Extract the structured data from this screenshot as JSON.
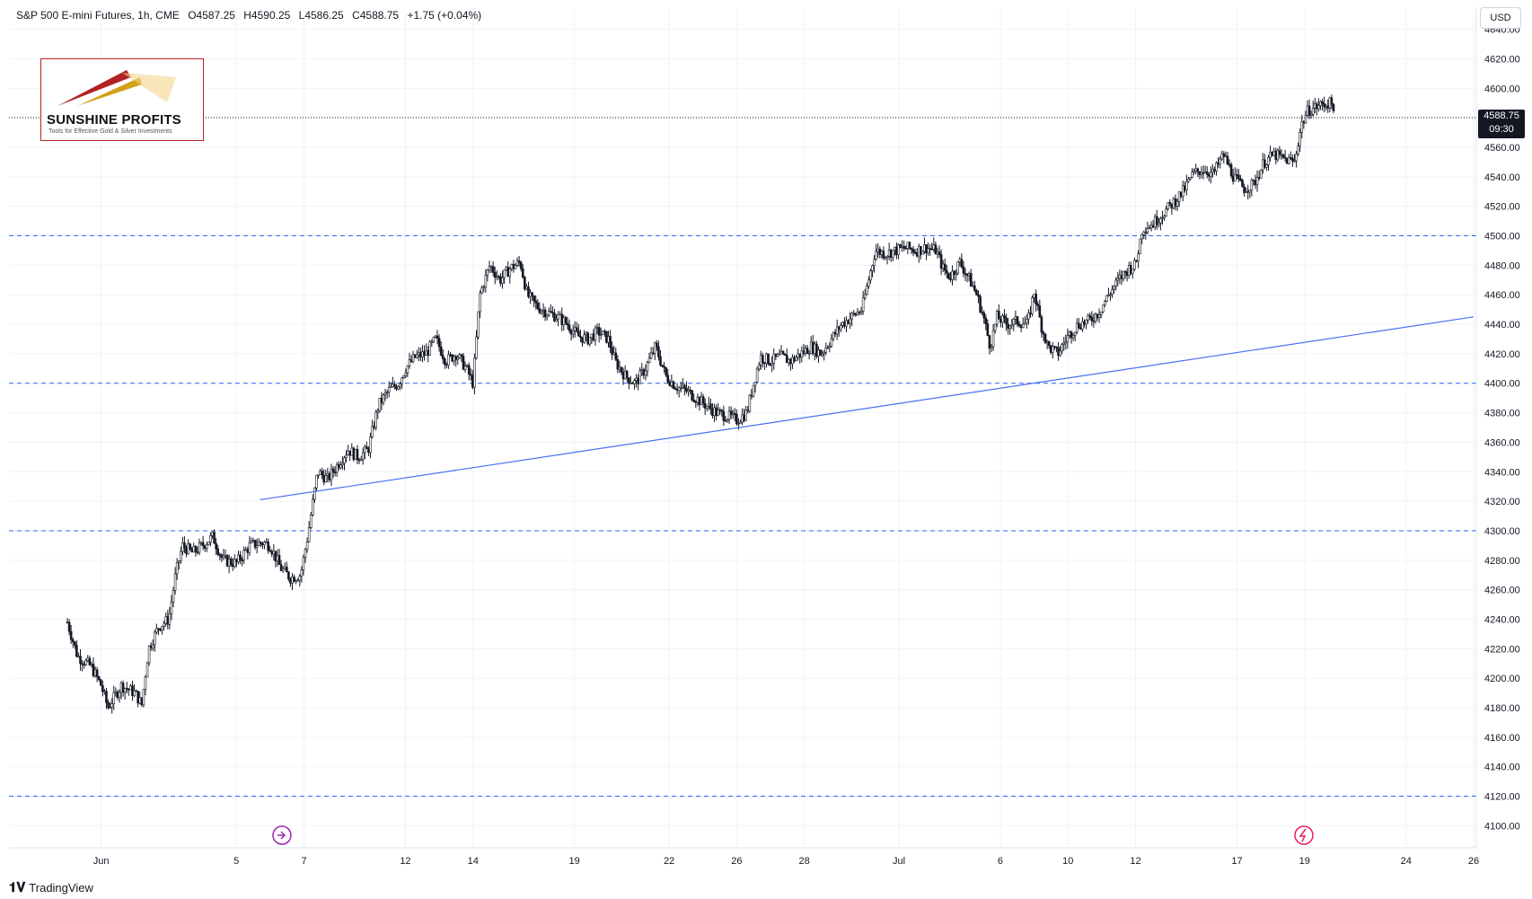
{
  "header": {
    "symbol": "S&P 500 E-mini Futures, 1h, CME",
    "open": "O4587.25",
    "high": "H4590.25",
    "low": "L4586.25",
    "close": "C4588.75",
    "change": "+1.75 (+0.04%)"
  },
  "logo": {
    "name": "SUNSHINE PROFITS",
    "tagline": "Tools for Effective Gold & Silver Investments"
  },
  "currency": "USD",
  "last_price": {
    "value": "4588.75",
    "countdown": "09:30"
  },
  "footer": {
    "brand": "TradingView"
  },
  "colors": {
    "candle": "#131722",
    "level_line": "#2962ff",
    "trend_line": "#4a6ff0",
    "grid": "#f0f3fa"
  },
  "chart_data": {
    "type": "candlestick",
    "title": "S&P 500 E-mini Futures, 1h, CME",
    "ylim": [
      4085,
      4655
    ],
    "y_ticks": [
      4100,
      4120,
      4140,
      4160,
      4180,
      4200,
      4220,
      4240,
      4260,
      4280,
      4300,
      4320,
      4340,
      4360,
      4380,
      4400,
      4420,
      4440,
      4460,
      4480,
      4500,
      4520,
      4540,
      4560,
      4580,
      4600,
      4620,
      4640
    ],
    "x_tick_labels": [
      {
        "label": "Jun",
        "day": 1.0
      },
      {
        "label": "5",
        "day": 5
      },
      {
        "label": "7",
        "day": 7
      },
      {
        "label": "12",
        "day": 10
      },
      {
        "label": "14",
        "day": 12
      },
      {
        "label": "19",
        "day": 15
      },
      {
        "label": "22",
        "day": 17.8
      },
      {
        "label": "26",
        "day": 19.8
      },
      {
        "label": "28",
        "day": 21.8
      },
      {
        "label": "Jul",
        "day": 24.6
      },
      {
        "label": "6",
        "day": 27.6
      },
      {
        "label": "10",
        "day": 29.6
      },
      {
        "label": "12",
        "day": 31.6
      },
      {
        "label": "17",
        "day": 34.6
      },
      {
        "label": "19",
        "day": 36.6
      },
      {
        "label": "24",
        "day": 39.6
      },
      {
        "label": "26",
        "day": 41.6
      }
    ],
    "x_range": [
      0,
      41.6
    ],
    "horizontal_levels": [
      4120,
      4300,
      4400,
      4500
    ],
    "trendline": {
      "start": {
        "day": 5.7,
        "price": 4321
      },
      "end": {
        "day": 41.6,
        "price": 4445
      }
    },
    "price_path": [
      {
        "day": 0.0,
        "price": 4238
      },
      {
        "day": 0.3,
        "price": 4215
      },
      {
        "day": 0.7,
        "price": 4208
      },
      {
        "day": 1.0,
        "price": 4195
      },
      {
        "day": 1.2,
        "price": 4180
      },
      {
        "day": 1.6,
        "price": 4195
      },
      {
        "day": 2.0,
        "price": 4190
      },
      {
        "day": 2.2,
        "price": 4182
      },
      {
        "day": 2.4,
        "price": 4220
      },
      {
        "day": 2.7,
        "price": 4235
      },
      {
        "day": 3.0,
        "price": 4240
      },
      {
        "day": 3.2,
        "price": 4270
      },
      {
        "day": 3.4,
        "price": 4290
      },
      {
        "day": 3.7,
        "price": 4285
      },
      {
        "day": 4.0,
        "price": 4290
      },
      {
        "day": 4.3,
        "price": 4296
      },
      {
        "day": 4.6,
        "price": 4280
      },
      {
        "day": 5.0,
        "price": 4278
      },
      {
        "day": 5.4,
        "price": 4290
      },
      {
        "day": 5.8,
        "price": 4292
      },
      {
        "day": 6.0,
        "price": 4290
      },
      {
        "day": 6.3,
        "price": 4275
      },
      {
        "day": 6.6,
        "price": 4268
      },
      {
        "day": 6.9,
        "price": 4270
      },
      {
        "day": 7.1,
        "price": 4295
      },
      {
        "day": 7.4,
        "price": 4340
      },
      {
        "day": 7.7,
        "price": 4335
      },
      {
        "day": 8.0,
        "price": 4345
      },
      {
        "day": 8.3,
        "price": 4355
      },
      {
        "day": 8.6,
        "price": 4350
      },
      {
        "day": 8.9,
        "price": 4355
      },
      {
        "day": 9.2,
        "price": 4385
      },
      {
        "day": 9.5,
        "price": 4395
      },
      {
        "day": 9.8,
        "price": 4400
      },
      {
        "day": 10.0,
        "price": 4410
      },
      {
        "day": 10.3,
        "price": 4418
      },
      {
        "day": 10.6,
        "price": 4420
      },
      {
        "day": 10.9,
        "price": 4430
      },
      {
        "day": 11.2,
        "price": 4415
      },
      {
        "day": 11.5,
        "price": 4420
      },
      {
        "day": 11.8,
        "price": 4410
      },
      {
        "day": 12.0,
        "price": 4400
      },
      {
        "day": 12.2,
        "price": 4460
      },
      {
        "day": 12.5,
        "price": 4480
      },
      {
        "day": 12.8,
        "price": 4470
      },
      {
        "day": 13.1,
        "price": 4478
      },
      {
        "day": 13.4,
        "price": 4482
      },
      {
        "day": 13.6,
        "price": 4460
      },
      {
        "day": 13.9,
        "price": 4452
      },
      {
        "day": 14.2,
        "price": 4448
      },
      {
        "day": 14.5,
        "price": 4445
      },
      {
        "day": 14.8,
        "price": 4440
      },
      {
        "day": 15.1,
        "price": 4432
      },
      {
        "day": 15.4,
        "price": 4430
      },
      {
        "day": 15.7,
        "price": 4435
      },
      {
        "day": 16.0,
        "price": 4430
      },
      {
        "day": 16.2,
        "price": 4415
      },
      {
        "day": 16.5,
        "price": 4405
      },
      {
        "day": 16.8,
        "price": 4400
      },
      {
        "day": 17.1,
        "price": 4410
      },
      {
        "day": 17.4,
        "price": 4425
      },
      {
        "day": 17.7,
        "price": 4405
      },
      {
        "day": 18.0,
        "price": 4398
      },
      {
        "day": 18.3,
        "price": 4395
      },
      {
        "day": 18.6,
        "price": 4390
      },
      {
        "day": 18.9,
        "price": 4385
      },
      {
        "day": 19.2,
        "price": 4380
      },
      {
        "day": 19.5,
        "price": 4378
      },
      {
        "day": 19.8,
        "price": 4375
      },
      {
        "day": 20.1,
        "price": 4380
      },
      {
        "day": 20.3,
        "price": 4400
      },
      {
        "day": 20.5,
        "price": 4418
      },
      {
        "day": 20.8,
        "price": 4415
      },
      {
        "day": 21.1,
        "price": 4418
      },
      {
        "day": 21.4,
        "price": 4415
      },
      {
        "day": 21.7,
        "price": 4420
      },
      {
        "day": 22.0,
        "price": 4425
      },
      {
        "day": 22.3,
        "price": 4420
      },
      {
        "day": 22.6,
        "price": 4430
      },
      {
        "day": 22.9,
        "price": 4440
      },
      {
        "day": 23.2,
        "price": 4445
      },
      {
        "day": 23.5,
        "price": 4450
      },
      {
        "day": 23.7,
        "price": 4470
      },
      {
        "day": 23.9,
        "price": 4490
      },
      {
        "day": 24.2,
        "price": 4488
      },
      {
        "day": 24.5,
        "price": 4490
      },
      {
        "day": 24.8,
        "price": 4492
      },
      {
        "day": 25.1,
        "price": 4490
      },
      {
        "day": 25.4,
        "price": 4492
      },
      {
        "day": 25.7,
        "price": 4490
      },
      {
        "day": 25.9,
        "price": 4478
      },
      {
        "day": 26.1,
        "price": 4472
      },
      {
        "day": 26.4,
        "price": 4482
      },
      {
        "day": 26.7,
        "price": 4470
      },
      {
        "day": 26.9,
        "price": 4460
      },
      {
        "day": 27.1,
        "price": 4445
      },
      {
        "day": 27.3,
        "price": 4425
      },
      {
        "day": 27.5,
        "price": 4445
      },
      {
        "day": 27.8,
        "price": 4440
      },
      {
        "day": 28.1,
        "price": 4442
      },
      {
        "day": 28.4,
        "price": 4440
      },
      {
        "day": 28.6,
        "price": 4462
      },
      {
        "day": 28.8,
        "price": 4440
      },
      {
        "day": 29.0,
        "price": 4425
      },
      {
        "day": 29.3,
        "price": 4420
      },
      {
        "day": 29.6,
        "price": 4432
      },
      {
        "day": 29.9,
        "price": 4440
      },
      {
        "day": 30.2,
        "price": 4442
      },
      {
        "day": 30.5,
        "price": 4448
      },
      {
        "day": 30.8,
        "price": 4460
      },
      {
        "day": 31.1,
        "price": 4470
      },
      {
        "day": 31.4,
        "price": 4478
      },
      {
        "day": 31.6,
        "price": 4480
      },
      {
        "day": 31.8,
        "price": 4505
      },
      {
        "day": 32.1,
        "price": 4508
      },
      {
        "day": 32.4,
        "price": 4515
      },
      {
        "day": 32.7,
        "price": 4522
      },
      {
        "day": 33.0,
        "price": 4530
      },
      {
        "day": 33.3,
        "price": 4542
      },
      {
        "day": 33.6,
        "price": 4545
      },
      {
        "day": 33.9,
        "price": 4542
      },
      {
        "day": 34.2,
        "price": 4555
      },
      {
        "day": 34.5,
        "price": 4540
      },
      {
        "day": 34.8,
        "price": 4532
      },
      {
        "day": 35.1,
        "price": 4535
      },
      {
        "day": 35.4,
        "price": 4550
      },
      {
        "day": 35.7,
        "price": 4555
      },
      {
        "day": 36.0,
        "price": 4552
      },
      {
        "day": 36.3,
        "price": 4550
      },
      {
        "day": 36.5,
        "price": 4575
      },
      {
        "day": 36.7,
        "price": 4585
      },
      {
        "day": 37.0,
        "price": 4588
      },
      {
        "day": 37.3,
        "price": 4590
      },
      {
        "day": 37.5,
        "price": 4588
      }
    ]
  }
}
